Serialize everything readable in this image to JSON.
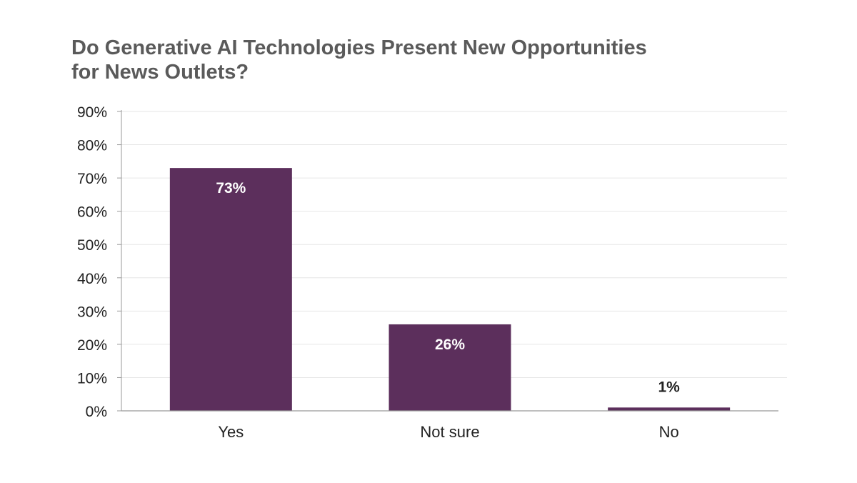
{
  "chart_data": {
    "type": "bar",
    "title_line1": "Do Generative AI Technologies Present New Opportunities",
    "title_line2": "for News Outlets?",
    "categories": [
      "Yes",
      "Not sure",
      "No"
    ],
    "values": [
      73,
      26,
      1
    ],
    "data_labels": [
      "73%",
      "26%",
      "1%"
    ],
    "xlabel": "",
    "ylabel": "",
    "ylim": [
      0,
      90
    ],
    "yticks": [
      "0%",
      "10%",
      "20%",
      "30%",
      "40%",
      "50%",
      "60%",
      "70%",
      "80%",
      "90%"
    ],
    "grid": true,
    "legend": "none",
    "bar_color": "#5c2f5c"
  }
}
